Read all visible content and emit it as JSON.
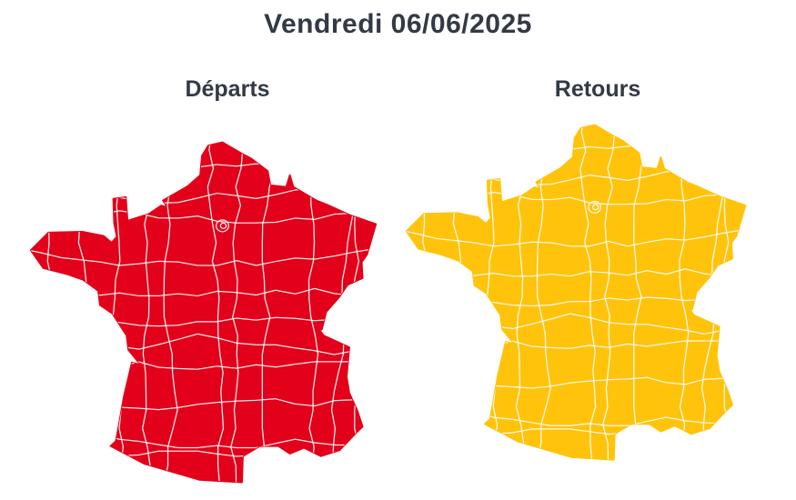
{
  "title": "Vendredi 06/06/2025",
  "maps": [
    {
      "label": "Départs",
      "color": "#E2001A"
    },
    {
      "label": "Retours",
      "color": "#FFC30B"
    }
  ],
  "colors": {
    "department_border": "#FFFFFF",
    "text": "#333A45",
    "background": "#FFFFFF"
  }
}
